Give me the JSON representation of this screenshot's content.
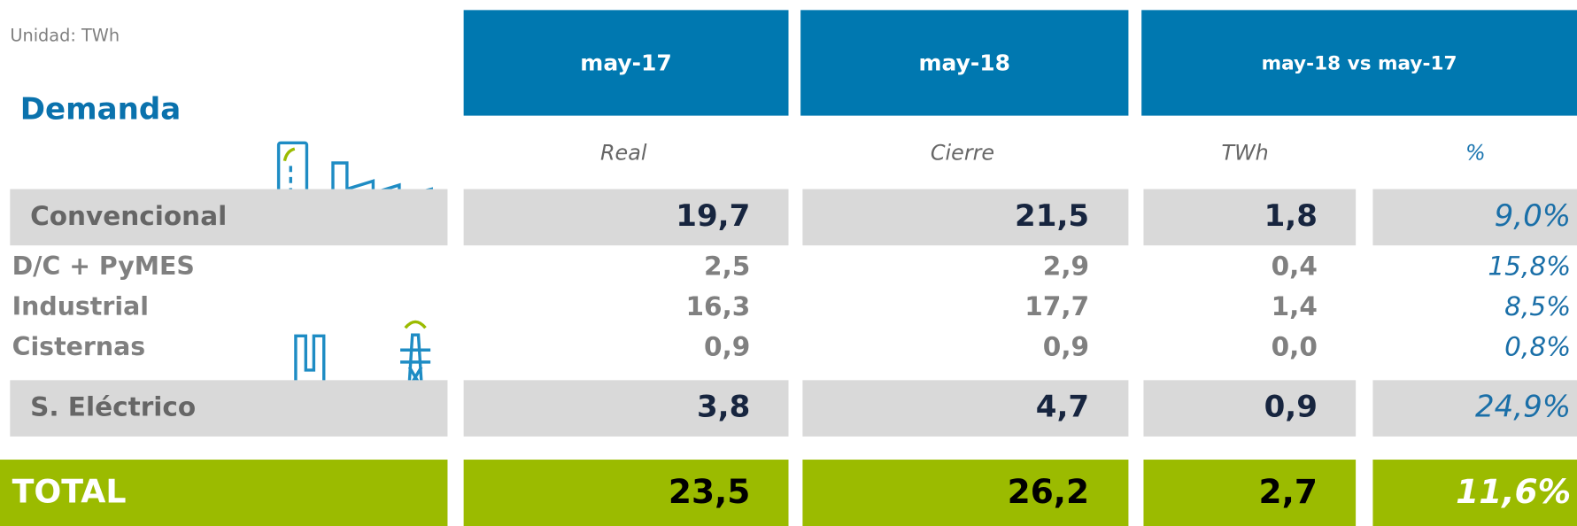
{
  "unit": "Unidad: TWh",
  "title": "Demanda",
  "headers": [
    "may-17",
    "may-18",
    "may-18 vs may-17"
  ],
  "subheaders": [
    "Real",
    "Cierre",
    "TWh",
    "%"
  ],
  "rows": [
    {
      "label": "Convencional",
      "values": [
        "19,7",
        "21,5",
        "1,8",
        "9,0%"
      ]
    },
    {
      "label": "D/C + PyMES",
      "values": [
        "2,5",
        "2,9",
        "0,4",
        "15,8%"
      ]
    },
    {
      "label": "Industrial",
      "values": [
        "16,3",
        "17,7",
        "1,4",
        "8,5%"
      ]
    },
    {
      "label": "Cisternas",
      "values": [
        "0,9",
        "0,9",
        "0,0",
        "0,8%"
      ]
    },
    {
      "label": "S. Eléctrico",
      "values": [
        "3,8",
        "4,7",
        "0,9",
        "24,9%"
      ]
    }
  ],
  "total": {
    "label": "TOTAL",
    "values": [
      "23,5",
      "26,2",
      "2,7",
      "11,6%"
    ]
  }
}
